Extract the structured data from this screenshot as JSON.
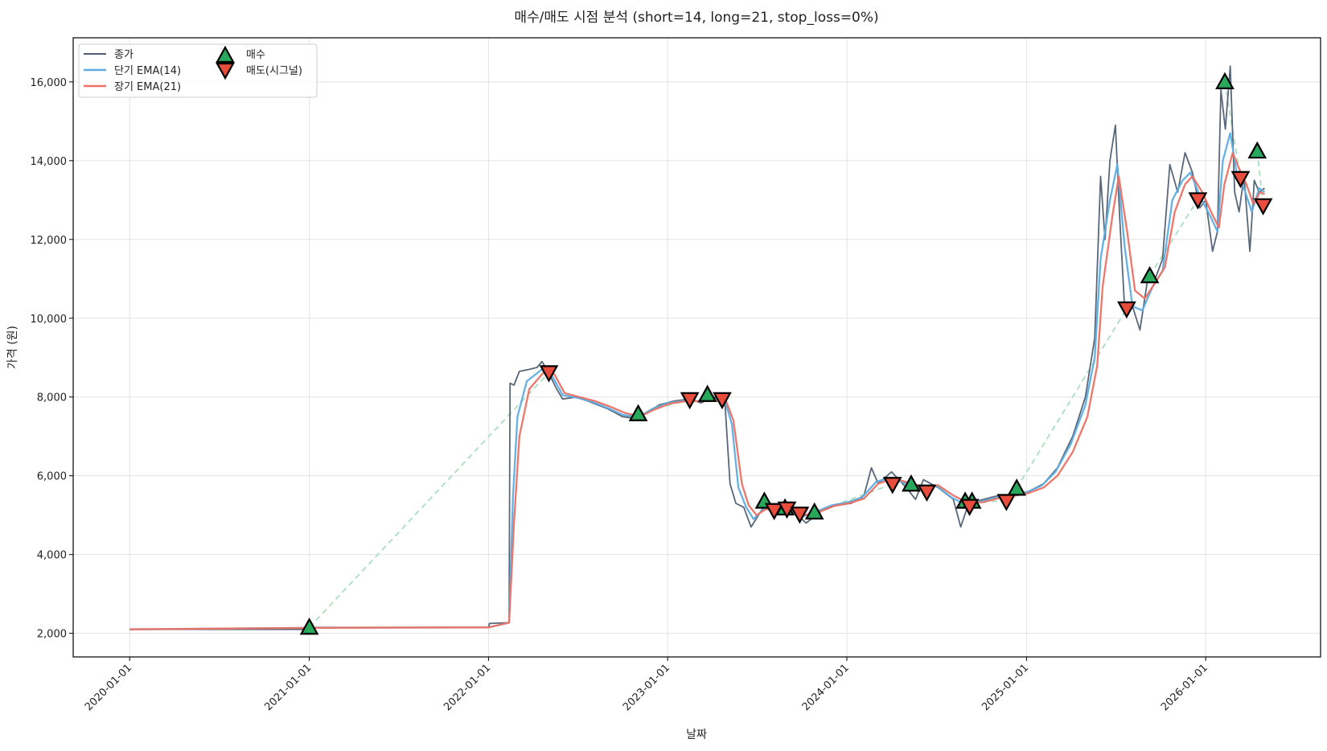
{
  "chart_data": {
    "type": "line",
    "title": "매수/매도 시점 분석 (short=14, long=21, stop_loss=0%)",
    "xlabel": "날짜",
    "ylabel": "가격 (원)",
    "xlim": [
      "2019-09-08",
      "2026-08-23"
    ],
    "ylim": [
      1400,
      17120
    ],
    "grid": true,
    "legend_position": "top-left",
    "x_ticks": [
      "2020-01-01",
      "2021-01-01",
      "2022-01-01",
      "2023-01-01",
      "2024-01-01",
      "2025-01-01",
      "2026-01-01"
    ],
    "y_ticks": [
      2000,
      4000,
      6000,
      8000,
      10000,
      12000,
      14000,
      16000
    ],
    "y_tick_labels": [
      "2,000",
      "4,000",
      "6,000",
      "8,000",
      "10,000",
      "12,000",
      "14,000",
      "16,000"
    ],
    "colors": {
      "close": "#4f5f72",
      "ema_short": "#5dade2",
      "ema_long": "#ec7063",
      "buy": "#27a85a",
      "sell": "#e74c3c",
      "trade_line": "#a9dfbf"
    },
    "legend": [
      "종가",
      "단기 EMA(14)",
      "장기 EMA(21)",
      "매수",
      "매도(시그널)"
    ],
    "series": [
      {
        "name": "종가",
        "points": [
          [
            "2020-01-01",
            2100
          ],
          [
            "2020-12-31",
            2100
          ],
          [
            "2021-01-05",
            2150
          ],
          [
            "2022-01-01",
            2150
          ],
          [
            "2022-01-03",
            2250
          ],
          [
            "2022-02-12",
            2270
          ],
          [
            "2022-02-14",
            8350
          ],
          [
            "2022-02-22",
            8300
          ],
          [
            "2022-03-05",
            8650
          ],
          [
            "2022-03-25",
            8700
          ],
          [
            "2022-04-10",
            8750
          ],
          [
            "2022-04-20",
            8900
          ],
          [
            "2022-05-04",
            8600
          ],
          [
            "2022-05-20",
            8200
          ],
          [
            "2022-06-01",
            7950
          ],
          [
            "2022-07-01",
            8000
          ],
          [
            "2022-08-01",
            7850
          ],
          [
            "2022-09-01",
            7700
          ],
          [
            "2022-10-01",
            7500
          ],
          [
            "2022-11-01",
            7450
          ],
          [
            "2022-11-20",
            7600
          ],
          [
            "2022-12-15",
            7800
          ],
          [
            "2023-01-15",
            7900
          ],
          [
            "2023-02-15",
            7950
          ],
          [
            "2023-03-10",
            7850
          ],
          [
            "2023-04-05",
            8000
          ],
          [
            "2023-04-28",
            7800
          ],
          [
            "2023-05-08",
            5800
          ],
          [
            "2023-05-20",
            5300
          ],
          [
            "2023-06-05",
            5200
          ],
          [
            "2023-06-20",
            4700
          ],
          [
            "2023-07-05",
            5000
          ],
          [
            "2023-07-20",
            5300
          ],
          [
            "2023-08-10",
            5100
          ],
          [
            "2023-09-10",
            5150
          ],
          [
            "2023-10-10",
            4800
          ],
          [
            "2023-11-10",
            5100
          ],
          [
            "2023-12-10",
            5250
          ],
          [
            "2024-01-10",
            5300
          ],
          [
            "2024-02-05",
            5500
          ],
          [
            "2024-02-20",
            6200
          ],
          [
            "2024-03-05",
            5800
          ],
          [
            "2024-04-01",
            6100
          ],
          [
            "2024-05-01",
            5700
          ],
          [
            "2024-05-20",
            5400
          ],
          [
            "2024-06-05",
            5900
          ],
          [
            "2024-07-05",
            5700
          ],
          [
            "2024-08-05",
            5400
          ],
          [
            "2024-08-20",
            4700
          ],
          [
            "2024-09-05",
            5300
          ],
          [
            "2024-10-05",
            5400
          ],
          [
            "2024-11-05",
            5500
          ],
          [
            "2024-12-05",
            5500
          ],
          [
            "2025-01-05",
            5600
          ],
          [
            "2025-02-05",
            5800
          ],
          [
            "2025-03-05",
            6200
          ],
          [
            "2025-04-05",
            7000
          ],
          [
            "2025-05-01",
            8000
          ],
          [
            "2025-05-20",
            9500
          ],
          [
            "2025-06-01",
            13600
          ],
          [
            "2025-06-10",
            12000
          ],
          [
            "2025-06-20",
            14000
          ],
          [
            "2025-07-01",
            14900
          ],
          [
            "2025-07-10",
            12500
          ],
          [
            "2025-07-20",
            10200
          ],
          [
            "2025-08-05",
            10300
          ],
          [
            "2025-08-20",
            9700
          ],
          [
            "2025-09-05",
            11000
          ],
          [
            "2025-09-20",
            11000
          ],
          [
            "2025-10-05",
            11500
          ],
          [
            "2025-10-20",
            13900
          ],
          [
            "2025-11-05",
            13200
          ],
          [
            "2025-11-20",
            14200
          ],
          [
            "2025-12-05",
            13700
          ],
          [
            "2025-12-20",
            12800
          ],
          [
            "2026-01-01",
            13000
          ],
          [
            "2026-01-15",
            11700
          ],
          [
            "2026-01-25",
            12200
          ],
          [
            "2026-02-01",
            15800
          ],
          [
            "2026-02-10",
            14800
          ],
          [
            "2026-02-20",
            16400
          ],
          [
            "2026-03-01",
            13200
          ],
          [
            "2026-03-10",
            12700
          ],
          [
            "2026-03-20",
            13600
          ],
          [
            "2026-04-01",
            11700
          ],
          [
            "2026-04-10",
            13500
          ],
          [
            "2026-04-20",
            13200
          ],
          [
            "2026-05-01",
            13300
          ]
        ]
      },
      {
        "name": "단기 EMA(14)",
        "points": [
          [
            "2020-01-01",
            2100
          ],
          [
            "2021-01-10",
            2140
          ],
          [
            "2022-01-01",
            2150
          ],
          [
            "2022-02-12",
            2270
          ],
          [
            "2022-02-20",
            5500
          ],
          [
            "2022-03-01",
            7500
          ],
          [
            "2022-03-20",
            8400
          ],
          [
            "2022-04-20",
            8700
          ],
          [
            "2022-05-10",
            8550
          ],
          [
            "2022-06-01",
            8050
          ],
          [
            "2022-07-01",
            7980
          ],
          [
            "2022-08-01",
            7870
          ],
          [
            "2022-09-01",
            7720
          ],
          [
            "2022-10-01",
            7550
          ],
          [
            "2022-11-01",
            7480
          ],
          [
            "2022-12-01",
            7700
          ],
          [
            "2023-01-01",
            7850
          ],
          [
            "2023-02-01",
            7900
          ],
          [
            "2023-04-28",
            7900
          ],
          [
            "2023-05-12",
            7300
          ],
          [
            "2023-05-25",
            5700
          ],
          [
            "2023-06-10",
            5200
          ],
          [
            "2023-06-25",
            4900
          ],
          [
            "2023-07-15",
            5150
          ],
          [
            "2023-08-01",
            5150
          ],
          [
            "2023-09-01",
            5100
          ],
          [
            "2023-10-01",
            4950
          ],
          [
            "2023-11-01",
            5100
          ],
          [
            "2023-12-01",
            5250
          ],
          [
            "2024-01-01",
            5320
          ],
          [
            "2024-02-01",
            5450
          ],
          [
            "2024-03-01",
            5850
          ],
          [
            "2024-04-01",
            5950
          ],
          [
            "2024-05-01",
            5800
          ],
          [
            "2024-06-01",
            5700
          ],
          [
            "2024-07-01",
            5750
          ],
          [
            "2024-08-01",
            5450
          ],
          [
            "2024-09-01",
            5250
          ],
          [
            "2024-10-01",
            5350
          ],
          [
            "2024-11-01",
            5450
          ],
          [
            "2024-12-01",
            5500
          ],
          [
            "2025-01-01",
            5580
          ],
          [
            "2025-02-01",
            5750
          ],
          [
            "2025-03-01",
            6100
          ],
          [
            "2025-04-01",
            6800
          ],
          [
            "2025-05-01",
            7800
          ],
          [
            "2025-05-20",
            9000
          ],
          [
            "2025-06-01",
            11500
          ],
          [
            "2025-06-20",
            13000
          ],
          [
            "2025-07-05",
            13900
          ],
          [
            "2025-07-20",
            11800
          ],
          [
            "2025-08-05",
            10300
          ],
          [
            "2025-08-25",
            10200
          ],
          [
            "2025-09-15",
            10800
          ],
          [
            "2025-10-05",
            11200
          ],
          [
            "2025-10-25",
            13000
          ],
          [
            "2025-11-15",
            13500
          ],
          [
            "2025-12-01",
            13700
          ],
          [
            "2025-12-20",
            13100
          ],
          [
            "2026-01-10",
            12600
          ],
          [
            "2026-01-25",
            12200
          ],
          [
            "2026-02-05",
            14000
          ],
          [
            "2026-02-20",
            14700
          ],
          [
            "2026-03-05",
            13700
          ],
          [
            "2026-03-20",
            13300
          ],
          [
            "2026-04-05",
            12700
          ],
          [
            "2026-04-20",
            13300
          ],
          [
            "2026-05-01",
            13200
          ]
        ]
      },
      {
        "name": "장기 EMA(21)",
        "points": [
          [
            "2020-01-01",
            2100
          ],
          [
            "2021-01-15",
            2140
          ],
          [
            "2022-01-01",
            2150
          ],
          [
            "2022-02-12",
            2270
          ],
          [
            "2022-02-22",
            4800
          ],
          [
            "2022-03-05",
            7000
          ],
          [
            "2022-03-25",
            8200
          ],
          [
            "2022-04-25",
            8650
          ],
          [
            "2022-05-15",
            8580
          ],
          [
            "2022-06-05",
            8100
          ],
          [
            "2022-07-05",
            8000
          ],
          [
            "2022-08-05",
            7900
          ],
          [
            "2022-09-05",
            7760
          ],
          [
            "2022-10-05",
            7600
          ],
          [
            "2022-11-05",
            7500
          ],
          [
            "2022-12-05",
            7680
          ],
          [
            "2023-01-05",
            7830
          ],
          [
            "2023-02-05",
            7890
          ],
          [
            "2023-04-30",
            7900
          ],
          [
            "2023-05-15",
            7400
          ],
          [
            "2023-06-01",
            5800
          ],
          [
            "2023-06-15",
            5250
          ],
          [
            "2023-07-01",
            5000
          ],
          [
            "2023-07-20",
            5150
          ],
          [
            "2023-08-05",
            5170
          ],
          [
            "2023-09-05",
            5120
          ],
          [
            "2023-10-05",
            5000
          ],
          [
            "2023-11-05",
            5080
          ],
          [
            "2023-12-05",
            5230
          ],
          [
            "2024-01-05",
            5300
          ],
          [
            "2024-02-05",
            5420
          ],
          [
            "2024-03-05",
            5800
          ],
          [
            "2024-04-05",
            5930
          ],
          [
            "2024-05-05",
            5830
          ],
          [
            "2024-06-05",
            5720
          ],
          [
            "2024-07-05",
            5760
          ],
          [
            "2024-08-05",
            5500
          ],
          [
            "2024-09-05",
            5300
          ],
          [
            "2024-10-05",
            5330
          ],
          [
            "2024-11-05",
            5430
          ],
          [
            "2024-12-05",
            5490
          ],
          [
            "2025-01-05",
            5560
          ],
          [
            "2025-02-05",
            5700
          ],
          [
            "2025-03-05",
            6000
          ],
          [
            "2025-04-05",
            6600
          ],
          [
            "2025-05-05",
            7500
          ],
          [
            "2025-05-25",
            8800
          ],
          [
            "2025-06-05",
            10800
          ],
          [
            "2025-06-25",
            12600
          ],
          [
            "2025-07-08",
            13600
          ],
          [
            "2025-07-25",
            12200
          ],
          [
            "2025-08-10",
            10700
          ],
          [
            "2025-08-30",
            10500
          ],
          [
            "2025-09-20",
            10900
          ],
          [
            "2025-10-10",
            11300
          ],
          [
            "2025-10-30",
            12700
          ],
          [
            "2025-11-20",
            13400
          ],
          [
            "2025-12-05",
            13600
          ],
          [
            "2025-12-25",
            13200
          ],
          [
            "2026-01-12",
            12700
          ],
          [
            "2026-01-28",
            12300
          ],
          [
            "2026-02-08",
            13400
          ],
          [
            "2026-02-25",
            14200
          ],
          [
            "2026-03-10",
            13800
          ],
          [
            "2026-03-25",
            13400
          ],
          [
            "2026-04-08",
            12900
          ],
          [
            "2026-04-22",
            13200
          ],
          [
            "2026-05-01",
            13150
          ]
        ]
      }
    ],
    "buy_signals": [
      [
        "2021-01-01",
        2150
      ],
      [
        "2022-11-02",
        7570
      ],
      [
        "2023-03-23",
        8060
      ],
      [
        "2023-07-17",
        5350
      ],
      [
        "2023-08-28",
        5180
      ],
      [
        "2023-10-27",
        5075
      ],
      [
        "2024-05-11",
        5785
      ],
      [
        "2024-08-29",
        5350
      ],
      [
        "2024-09-12",
        5350
      ],
      [
        "2024-12-12",
        5680
      ],
      [
        "2025-09-09",
        11075
      ],
      [
        "2026-02-09",
        16000
      ],
      [
        "2026-04-16",
        14240
      ]
    ],
    "sell_signals": [
      [
        "2022-05-04",
        8620
      ],
      [
        "2023-02-15",
        7935
      ],
      [
        "2023-04-22",
        7935
      ],
      [
        "2023-08-06",
        5120
      ],
      [
        "2023-09-01",
        5160
      ],
      [
        "2023-09-27",
        5030
      ],
      [
        "2024-04-03",
        5785
      ],
      [
        "2024-06-12",
        5590
      ],
      [
        "2024-09-07",
        5225
      ],
      [
        "2024-11-21",
        5350
      ],
      [
        "2025-07-24",
        10240
      ],
      [
        "2025-12-16",
        13010
      ],
      [
        "2026-03-13",
        13550
      ],
      [
        "2026-04-28",
        12860
      ]
    ]
  }
}
